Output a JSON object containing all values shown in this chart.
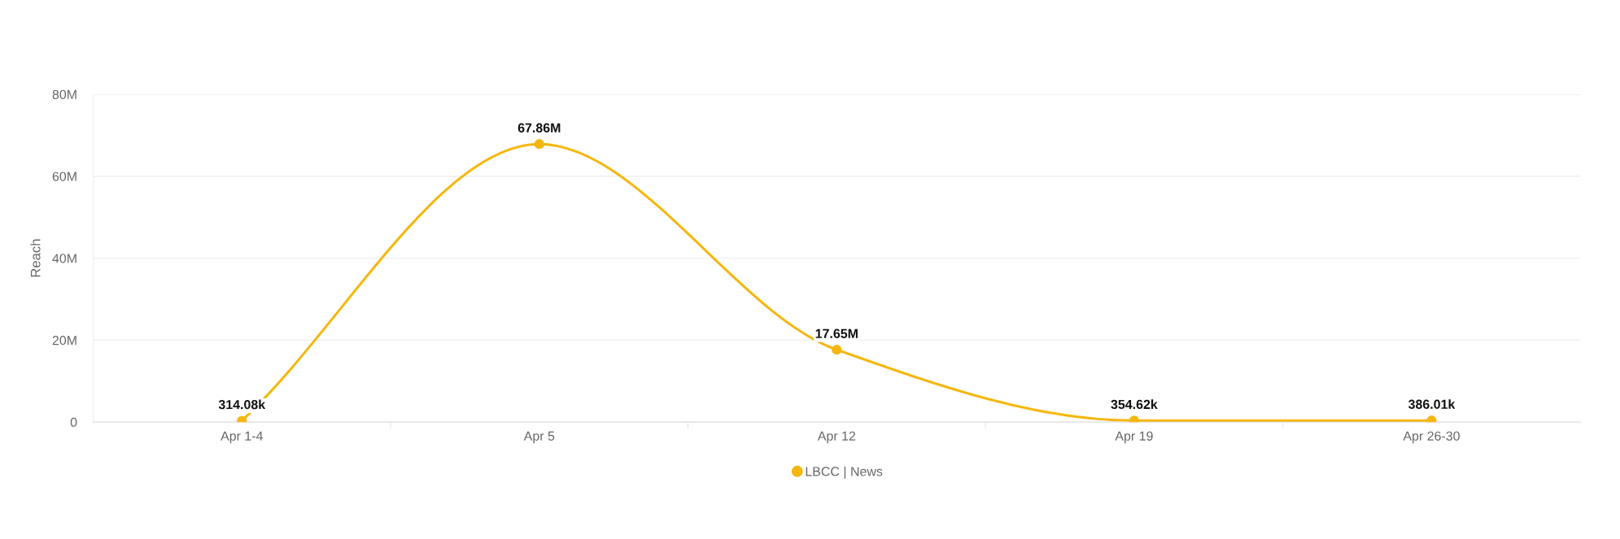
{
  "chart_data": {
    "type": "line",
    "ylabel": "Reach",
    "categories": [
      "Apr 1-4",
      "Apr 5",
      "Apr 12",
      "Apr 19",
      "Apr 26-30"
    ],
    "series": [
      {
        "name": "LBCC | News",
        "color": "#f5b70f",
        "values": [
          314080,
          67860000,
          17650000,
          354620,
          386010
        ],
        "value_labels": [
          "314.08k",
          "67.86M",
          "17.65M",
          "354.62k",
          "386.01k"
        ]
      }
    ],
    "ylim": [
      0,
      80000000
    ],
    "yticks": [
      0,
      {
        "value": 20000000,
        "label": "20M"
      },
      {
        "value": 40000000,
        "label": "40M"
      },
      {
        "value": 60000000,
        "label": "60M"
      },
      {
        "value": 80000000,
        "label": "80M"
      }
    ],
    "grid": "y",
    "legend": "bottom",
    "marker": "circle",
    "line_style": "solid"
  }
}
